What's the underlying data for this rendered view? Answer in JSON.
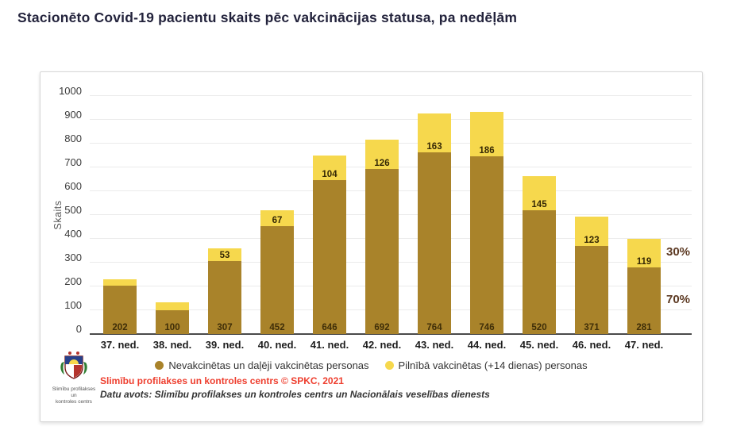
{
  "page": {
    "title": "Stacionēto Covid-19 pacientu skaits pēc vakcinācijas statusa, pa nedēļām"
  },
  "chart_data": {
    "type": "bar",
    "stacked": true,
    "ylabel": "Skaits",
    "xlabel": "",
    "ylim": [
      0,
      1000
    ],
    "yticks": [
      0,
      100,
      200,
      300,
      400,
      500,
      600,
      700,
      800,
      900,
      1000
    ],
    "grid": "horizontal gridlines on",
    "legend_position": "bottom",
    "categories": [
      "37. ned.",
      "38. ned.",
      "39. ned.",
      "40. ned.",
      "41. ned.",
      "42. ned.",
      "43. ned.",
      "44. ned.",
      "45. ned.",
      "46. ned.",
      "47. ned."
    ],
    "series": [
      {
        "name": "Nevakcinētas un daļēji vakcinētas personas",
        "color": "#A9832A",
        "values": [
          202,
          100,
          307,
          452,
          646,
          692,
          764,
          746,
          520,
          371,
          281
        ],
        "labels": [
          "202",
          "100",
          "307",
          "452",
          "646",
          "692",
          "764",
          "746",
          "520",
          "371",
          "281"
        ]
      },
      {
        "name": "Pilnībā vakcinētas (+14 dienas) personas",
        "color": "#F6D84D",
        "values": [
          28,
          35,
          53,
          67,
          104,
          126,
          163,
          186,
          145,
          123,
          119
        ],
        "labels": [
          "",
          "",
          "53",
          "67",
          "104",
          "126",
          "163",
          "186",
          "145",
          "123",
          "119"
        ]
      }
    ],
    "annotations": [
      {
        "text": "30%"
      },
      {
        "text": "70%"
      }
    ]
  },
  "footer": {
    "logo_caption_line1": "Slimību profilakses un",
    "logo_caption_line2": "kontroles centrs",
    "source_line1": "Slimību profilakses un kontroles centrs © SPKC, 2021",
    "source_line2": "Datu avots: Slimību profilakses un kontroles centrs un Nacionālais veselības dienests"
  }
}
